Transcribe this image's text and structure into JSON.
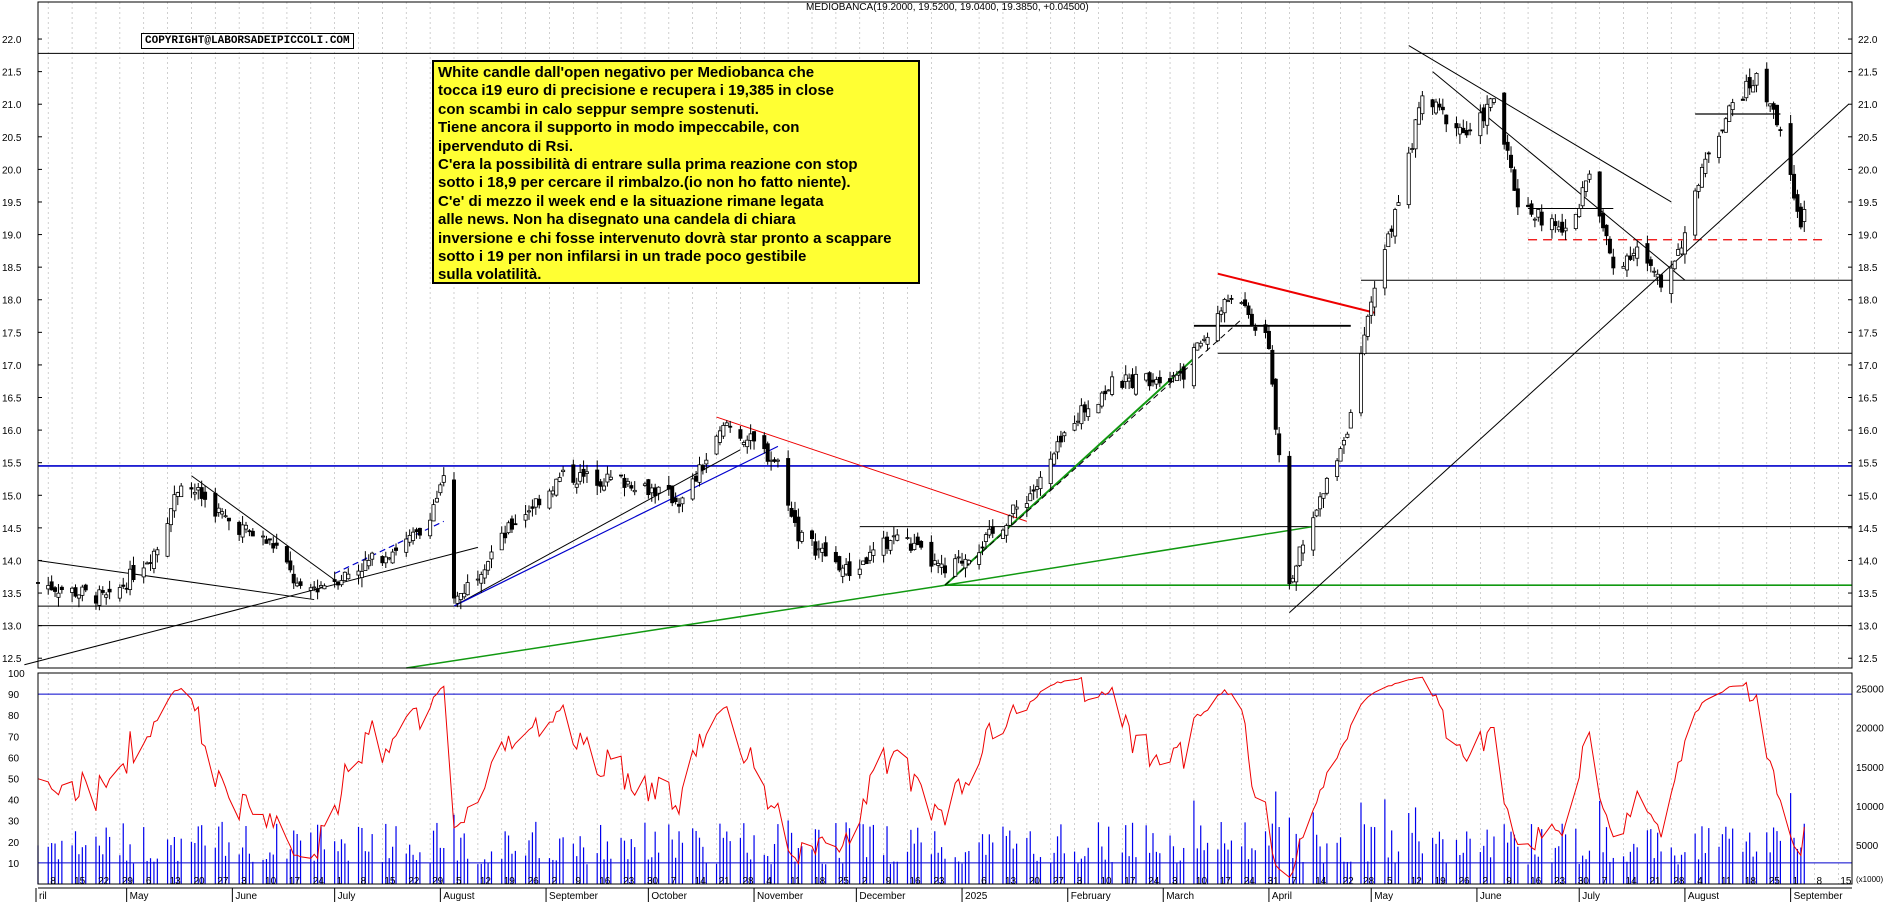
{
  "header": {
    "symbol": "MEDIOBANCA",
    "ohlc": "(19.2000, 19.5200, 19.0400, 19.3850, +0.04500)"
  },
  "copyright": "COPYRIGHT@LABORSADEIPICCOLI.COM",
  "note_lines": [
    "White candle dall'open negativo per Mediobanca che",
    "tocca i19 euro di precisione e recupera i 19,385 in close",
    "con scambi in calo seppur sempre sostenuti.",
    "Tiene ancora il supporto in modo impeccabile, con",
    "ipervenduto di Rsi.",
    "C'era la possibilità di entrare sulla prima reazione con stop",
    "sotto i 18,9 per cercare il rimbalzo.(io non ho fatto niente).",
    "C'e' di mezzo il week end e la situazione rimane legata",
    "alle news. Non ha disegnato una candela di chiara",
    "inversione e chi fosse intervenuto dovrà star pronto a scappare",
    "sotto i 19 per non infilarsi in un trade poco gestibile",
    "sulla volatilità."
  ],
  "colors": {
    "candle": "#000000",
    "grid": "#bbbbbb",
    "blue_line": "#0000cc",
    "green_line": "#119911",
    "red_line": "#ee0000",
    "rsi": "#ee0000",
    "volume": "#0000ee",
    "note_bg": "#ffff33"
  },
  "chart_data": [
    {
      "type": "candlestick",
      "title": "MEDIOBANCA",
      "ylim": [
        12.35,
        22.2
      ],
      "y_ticks": [
        "12.5",
        "13.0",
        "13.5",
        "14.0",
        "14.5",
        "15.0",
        "15.5",
        "16.0",
        "16.5",
        "17.0",
        "17.5",
        "18.0",
        "18.5",
        "19.0",
        "19.5",
        "20.0",
        "20.5",
        "21.0",
        "21.5",
        "22.0"
      ],
      "x_range": [
        "2024-04-05",
        "2025-09-19"
      ],
      "last": {
        "open": 19.2,
        "high": 19.52,
        "low": 19.04,
        "close": 19.385,
        "change": 0.045
      },
      "key_points": [
        {
          "date": "2024-04-05",
          "close": 13.65
        },
        {
          "date": "2024-04-26",
          "close": 13.4
        },
        {
          "date": "2024-05-10",
          "close": 14.2
        },
        {
          "date": "2024-05-17",
          "close": 15.25
        },
        {
          "date": "2024-05-31",
          "close": 14.6
        },
        {
          "date": "2024-06-14",
          "close": 14.2
        },
        {
          "date": "2024-06-21",
          "close": 13.5
        },
        {
          "date": "2024-07-05",
          "close": 13.8
        },
        {
          "date": "2024-07-26",
          "close": 14.4
        },
        {
          "date": "2024-08-02",
          "close": 15.2
        },
        {
          "date": "2024-08-05",
          "close": 13.35
        },
        {
          "date": "2024-08-23",
          "close": 14.6
        },
        {
          "date": "2024-09-06",
          "close": 15.3
        },
        {
          "date": "2024-09-27",
          "close": 15.2
        },
        {
          "date": "2024-10-11",
          "close": 14.9
        },
        {
          "date": "2024-10-24",
          "close": 16.1
        },
        {
          "date": "2024-11-08",
          "close": 15.5
        },
        {
          "date": "2024-11-14",
          "close": 14.4
        },
        {
          "date": "2024-11-29",
          "close": 13.8
        },
        {
          "date": "2024-12-13",
          "close": 14.4
        },
        {
          "date": "2024-12-27",
          "close": 13.8
        },
        {
          "date": "2025-01-10",
          "close": 14.4
        },
        {
          "date": "2025-01-24",
          "close": 15.2
        },
        {
          "date": "2025-02-03",
          "close": 16.2
        },
        {
          "date": "2025-02-14",
          "close": 16.7
        },
        {
          "date": "2025-03-07",
          "close": 16.9
        },
        {
          "date": "2025-03-21",
          "close": 18.1
        },
        {
          "date": "2025-04-01",
          "close": 17.3
        },
        {
          "date": "2025-04-07",
          "close": 13.7
        },
        {
          "date": "2025-04-14",
          "close": 14.6
        },
        {
          "date": "2025-04-25",
          "close": 16.2
        },
        {
          "date": "2025-05-02",
          "close": 18.2
        },
        {
          "date": "2025-05-09",
          "close": 19.5
        },
        {
          "date": "2025-05-16",
          "close": 21.1
        },
        {
          "date": "2025-05-30",
          "close": 20.5
        },
        {
          "date": "2025-06-06",
          "close": 21.1
        },
        {
          "date": "2025-06-13",
          "close": 19.5
        },
        {
          "date": "2025-06-27",
          "close": 19.0
        },
        {
          "date": "2025-07-04",
          "close": 19.9
        },
        {
          "date": "2025-07-11",
          "close": 18.5
        },
        {
          "date": "2025-07-18",
          "close": 18.8
        },
        {
          "date": "2025-07-25",
          "close": 18.2
        },
        {
          "date": "2025-08-01",
          "close": 19.0
        },
        {
          "date": "2025-08-08",
          "close": 20.3
        },
        {
          "date": "2025-08-15",
          "close": 21.0
        },
        {
          "date": "2025-08-22",
          "close": 21.4
        },
        {
          "date": "2025-08-29",
          "close": 20.6
        },
        {
          "date": "2025-09-04",
          "close": 19.1
        },
        {
          "date": "2025-09-05",
          "close": 19.385
        }
      ],
      "horizontal_levels": [
        {
          "value": 15.45,
          "color": "blue"
        },
        {
          "value": 13.62,
          "color": "green"
        },
        {
          "value": 21.78,
          "color": "black"
        },
        {
          "value": 18.3,
          "color": "black"
        },
        {
          "value": 17.18,
          "color": "black"
        },
        {
          "value": 14.52,
          "color": "black"
        },
        {
          "value": 13.3,
          "color": "black"
        },
        {
          "value": 13.0,
          "color": "black"
        },
        {
          "value": 18.92,
          "color": "red-dashed"
        }
      ]
    },
    {
      "type": "line",
      "title": "RSI",
      "ylim": [
        0,
        100
      ],
      "y_ticks": [
        "10",
        "20",
        "30",
        "40",
        "50",
        "60",
        "70",
        "80",
        "90",
        "100"
      ],
      "levels": [
        90,
        10
      ],
      "last_value": 12
    },
    {
      "type": "bar",
      "title": "Volume",
      "ylim": [
        0,
        27000
      ],
      "y_ticks": [
        "5000",
        "10000",
        "15000",
        "20000",
        "25000"
      ],
      "unit": "(x1000)"
    }
  ],
  "x_axis": {
    "day_ticks": [
      {
        "date": "2024-04-08",
        "label": "8"
      },
      {
        "date": "2024-04-15",
        "label": "15"
      },
      {
        "date": "2024-04-22",
        "label": "22"
      },
      {
        "date": "2024-04-29",
        "label": "29"
      },
      {
        "date": "2024-05-06",
        "label": "6"
      },
      {
        "date": "2024-05-13",
        "label": "13"
      },
      {
        "date": "2024-05-20",
        "label": "20"
      },
      {
        "date": "2024-05-27",
        "label": "27"
      },
      {
        "date": "2024-06-03",
        "label": "3"
      },
      {
        "date": "2024-06-10",
        "label": "10"
      },
      {
        "date": "2024-06-17",
        "label": "17"
      },
      {
        "date": "2024-06-24",
        "label": "24"
      },
      {
        "date": "2024-07-01",
        "label": "1"
      },
      {
        "date": "2024-07-08",
        "label": "8"
      },
      {
        "date": "2024-07-15",
        "label": "15"
      },
      {
        "date": "2024-07-22",
        "label": "22"
      },
      {
        "date": "2024-07-29",
        "label": "29"
      },
      {
        "date": "2024-08-05",
        "label": "5"
      },
      {
        "date": "2024-08-12",
        "label": "12"
      },
      {
        "date": "2024-08-19",
        "label": "19"
      },
      {
        "date": "2024-08-26",
        "label": "26"
      },
      {
        "date": "2024-09-02",
        "label": "2"
      },
      {
        "date": "2024-09-09",
        "label": "9"
      },
      {
        "date": "2024-09-16",
        "label": "16"
      },
      {
        "date": "2024-09-23",
        "label": "23"
      },
      {
        "date": "2024-09-30",
        "label": "30"
      },
      {
        "date": "2024-10-07",
        "label": "7"
      },
      {
        "date": "2024-10-14",
        "label": "14"
      },
      {
        "date": "2024-10-21",
        "label": "21"
      },
      {
        "date": "2024-10-28",
        "label": "28"
      },
      {
        "date": "2024-11-04",
        "label": "4"
      },
      {
        "date": "2024-11-11",
        "label": "11"
      },
      {
        "date": "2024-11-18",
        "label": "18"
      },
      {
        "date": "2024-11-25",
        "label": "25"
      },
      {
        "date": "2024-12-02",
        "label": "2"
      },
      {
        "date": "2024-12-09",
        "label": "9"
      },
      {
        "date": "2024-12-16",
        "label": "16"
      },
      {
        "date": "2024-12-23",
        "label": "23"
      },
      {
        "date": "2025-01-06",
        "label": "6"
      },
      {
        "date": "2025-01-13",
        "label": "13"
      },
      {
        "date": "2025-01-20",
        "label": "20"
      },
      {
        "date": "2025-01-27",
        "label": "27"
      },
      {
        "date": "2025-02-03",
        "label": "3"
      },
      {
        "date": "2025-02-10",
        "label": "10"
      },
      {
        "date": "2025-02-17",
        "label": "17"
      },
      {
        "date": "2025-02-24",
        "label": "24"
      },
      {
        "date": "2025-03-03",
        "label": "3"
      },
      {
        "date": "2025-03-10",
        "label": "10"
      },
      {
        "date": "2025-03-17",
        "label": "17"
      },
      {
        "date": "2025-03-24",
        "label": "24"
      },
      {
        "date": "2025-03-31",
        "label": "31"
      },
      {
        "date": "2025-04-07",
        "label": "7"
      },
      {
        "date": "2025-04-14",
        "label": "14"
      },
      {
        "date": "2025-04-22",
        "label": "22"
      },
      {
        "date": "2025-04-28",
        "label": "28"
      },
      {
        "date": "2025-05-05",
        "label": "5"
      },
      {
        "date": "2025-05-12",
        "label": "12"
      },
      {
        "date": "2025-05-19",
        "label": "19"
      },
      {
        "date": "2025-05-26",
        "label": "26"
      },
      {
        "date": "2025-06-02",
        "label": "2"
      },
      {
        "date": "2025-06-09",
        "label": "9"
      },
      {
        "date": "2025-06-16",
        "label": "16"
      },
      {
        "date": "2025-06-23",
        "label": "23"
      },
      {
        "date": "2025-06-30",
        "label": "30"
      },
      {
        "date": "2025-07-07",
        "label": "7"
      },
      {
        "date": "2025-07-14",
        "label": "14"
      },
      {
        "date": "2025-07-21",
        "label": "21"
      },
      {
        "date": "2025-07-28",
        "label": "28"
      },
      {
        "date": "2025-08-04",
        "label": "4"
      },
      {
        "date": "2025-08-11",
        "label": "11"
      },
      {
        "date": "2025-08-18",
        "label": "18"
      },
      {
        "date": "2025-08-25",
        "label": "25"
      },
      {
        "date": "2025-09-01",
        "label": "1"
      },
      {
        "date": "2025-09-08",
        "label": "8"
      },
      {
        "date": "2025-09-15",
        "label": "15"
      }
    ],
    "month_labels": [
      {
        "date": "2024-04-01",
        "label": "ril"
      },
      {
        "date": "2024-05-01",
        "label": "May"
      },
      {
        "date": "2024-06-01",
        "label": "June"
      },
      {
        "date": "2024-07-01",
        "label": "July"
      },
      {
        "date": "2024-08-01",
        "label": "August"
      },
      {
        "date": "2024-09-01",
        "label": "September"
      },
      {
        "date": "2024-10-01",
        "label": "October"
      },
      {
        "date": "2024-11-01",
        "label": "November"
      },
      {
        "date": "2024-12-01",
        "label": "December"
      },
      {
        "date": "2025-01-01",
        "label": "2025"
      },
      {
        "date": "2025-02-01",
        "label": "February"
      },
      {
        "date": "2025-03-01",
        "label": "March"
      },
      {
        "date": "2025-04-01",
        "label": "April"
      },
      {
        "date": "2025-05-01",
        "label": "May"
      },
      {
        "date": "2025-06-01",
        "label": "June"
      },
      {
        "date": "2025-07-01",
        "label": "July"
      },
      {
        "date": "2025-08-01",
        "label": "August"
      },
      {
        "date": "2025-09-01",
        "label": "September"
      }
    ]
  }
}
